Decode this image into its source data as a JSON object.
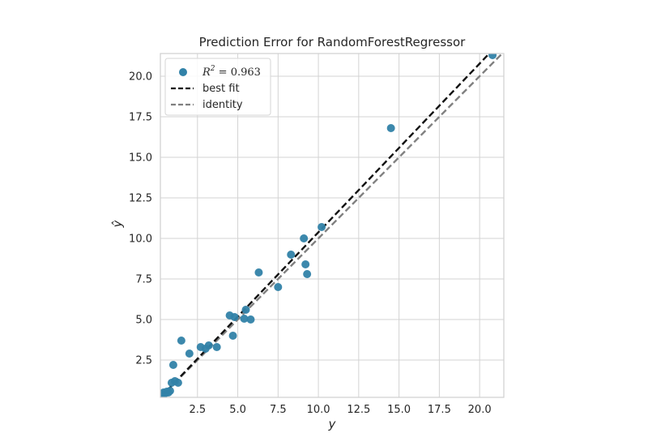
{
  "chart_data": {
    "type": "scatter",
    "title": "Prediction Error for RandomForestRegressor",
    "xlabel": "y",
    "ylabel": "ŷ",
    "xlim": [
      0.2,
      21.5
    ],
    "ylim": [
      0.2,
      21.4
    ],
    "xticks": [
      2.5,
      5.0,
      7.5,
      10.0,
      12.5,
      15.0,
      17.5,
      20.0
    ],
    "yticks": [
      2.5,
      5.0,
      7.5,
      10.0,
      12.5,
      15.0,
      17.5,
      20.0
    ],
    "xtick_labels": [
      "2.5",
      "5.0",
      "7.5",
      "10.0",
      "12.5",
      "15.0",
      "17.5",
      "20.0"
    ],
    "ytick_labels": [
      "2.5",
      "5.0",
      "7.5",
      "10.0",
      "12.5",
      "15.0",
      "17.5",
      "20.0"
    ],
    "grid": true,
    "legend": {
      "position": "top-left",
      "r2_label": "R",
      "r2_sup": "2",
      "r2_value": " = 0.963",
      "best_fit_label": "best fit",
      "identity_label": "identity"
    },
    "colors": {
      "points": "#3182a8",
      "best_fit": "#111111",
      "identity": "#808080",
      "grid": "#d3d3d3",
      "frame": "#cfcfcf"
    },
    "best_fit": {
      "slope": 1.04,
      "intercept": -0.02
    },
    "points": [
      {
        "x": 0.3,
        "y": 0.4
      },
      {
        "x": 0.4,
        "y": 0.5
      },
      {
        "x": 0.5,
        "y": 0.45
      },
      {
        "x": 0.6,
        "y": 0.55
      },
      {
        "x": 0.7,
        "y": 0.5
      },
      {
        "x": 0.8,
        "y": 0.6
      },
      {
        "x": 0.35,
        "y": 0.3
      },
      {
        "x": 0.9,
        "y": 1.1
      },
      {
        "x": 1.1,
        "y": 1.2
      },
      {
        "x": 1.3,
        "y": 1.1
      },
      {
        "x": 1.0,
        "y": 2.2
      },
      {
        "x": 1.5,
        "y": 3.7
      },
      {
        "x": 2.0,
        "y": 2.9
      },
      {
        "x": 2.7,
        "y": 3.3
      },
      {
        "x": 3.0,
        "y": 3.2
      },
      {
        "x": 3.2,
        "y": 3.4
      },
      {
        "x": 3.7,
        "y": 3.3
      },
      {
        "x": 4.5,
        "y": 5.25
      },
      {
        "x": 4.8,
        "y": 5.15
      },
      {
        "x": 4.7,
        "y": 4.0
      },
      {
        "x": 5.4,
        "y": 5.05
      },
      {
        "x": 5.5,
        "y": 5.6
      },
      {
        "x": 5.8,
        "y": 5.0
      },
      {
        "x": 6.3,
        "y": 7.9
      },
      {
        "x": 7.5,
        "y": 7.0
      },
      {
        "x": 8.3,
        "y": 9.0
      },
      {
        "x": 9.1,
        "y": 10.0
      },
      {
        "x": 9.2,
        "y": 8.4
      },
      {
        "x": 9.3,
        "y": 7.8
      },
      {
        "x": 10.2,
        "y": 10.7
      },
      {
        "x": 14.5,
        "y": 16.8
      },
      {
        "x": 20.8,
        "y": 21.3
      }
    ]
  }
}
